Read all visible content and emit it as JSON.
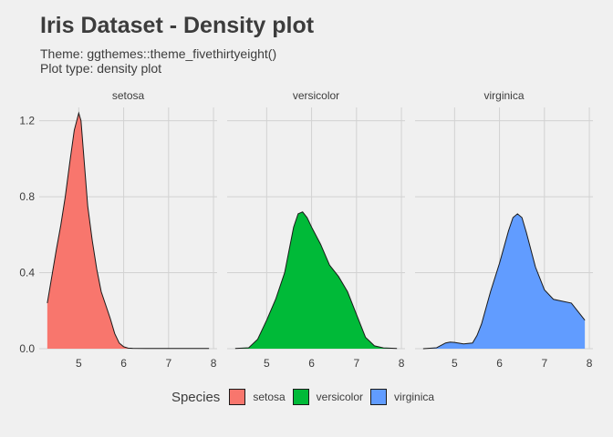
{
  "title": "Iris Dataset - Density plot",
  "subtitle_lines": [
    "Theme: ggthemes::theme_fivethirtyeight()",
    "Plot type: density plot"
  ],
  "colors": {
    "background": "#F0F0F0",
    "grid": "#D2D2D2",
    "text": "#3C3C3C",
    "outline": "#1A1A1A"
  },
  "chart_data": {
    "type": "area",
    "facet_by": "Species",
    "x": [
      4.3,
      4.5,
      4.7,
      4.85,
      5.0,
      5.1,
      5.25,
      5.4,
      5.55,
      5.7,
      5.85,
      6.0,
      6.2,
      6.5,
      6.8,
      7.1,
      7.4,
      7.65,
      7.9
    ],
    "xlim": [
      4.3,
      7.9
    ],
    "x_ticks": [
      5,
      6,
      7,
      8
    ],
    "y_ticks": [
      0.0,
      0.4,
      0.8,
      1.2
    ],
    "y_tick_labels": [
      "0.0",
      "0.4",
      "0.8",
      "1.2"
    ],
    "ylim": [
      0,
      1.27
    ],
    "grid": true,
    "legend_title": "Species",
    "legend_position": "bottom",
    "series": [
      {
        "name": "setosa",
        "color": "#F8766D",
        "x": [
          4.3,
          4.4,
          4.5,
          4.6,
          4.7,
          4.8,
          4.9,
          5.0,
          5.05,
          5.1,
          5.2,
          5.3,
          5.4,
          5.5,
          5.6,
          5.7,
          5.8,
          5.9,
          6.0,
          6.1,
          6.2,
          6.5,
          7.0,
          7.5,
          7.9
        ],
        "y": [
          0.24,
          0.38,
          0.52,
          0.65,
          0.8,
          0.98,
          1.15,
          1.24,
          1.2,
          1.05,
          0.75,
          0.57,
          0.42,
          0.3,
          0.23,
          0.16,
          0.08,
          0.03,
          0.01,
          0.003,
          0.002,
          0.001,
          0.001,
          0.001,
          0.001
        ]
      },
      {
        "name": "versicolor",
        "color": "#00BA38",
        "x": [
          4.3,
          4.6,
          4.8,
          5.0,
          5.2,
          5.4,
          5.6,
          5.7,
          5.8,
          5.9,
          6.0,
          6.2,
          6.4,
          6.6,
          6.8,
          7.0,
          7.2,
          7.4,
          7.6,
          7.9
        ],
        "y": [
          0.001,
          0.005,
          0.05,
          0.15,
          0.26,
          0.4,
          0.64,
          0.71,
          0.72,
          0.69,
          0.64,
          0.55,
          0.44,
          0.38,
          0.3,
          0.18,
          0.06,
          0.015,
          0.004,
          0.001
        ]
      },
      {
        "name": "virginica",
        "color": "#619CFF",
        "x": [
          4.3,
          4.6,
          4.8,
          4.9,
          5.0,
          5.2,
          5.4,
          5.5,
          5.6,
          5.8,
          6.0,
          6.2,
          6.3,
          6.4,
          6.5,
          6.6,
          6.8,
          7.0,
          7.2,
          7.4,
          7.6,
          7.7,
          7.8,
          7.9
        ],
        "y": [
          0.0,
          0.005,
          0.03,
          0.035,
          0.033,
          0.025,
          0.03,
          0.07,
          0.13,
          0.3,
          0.45,
          0.62,
          0.69,
          0.71,
          0.69,
          0.61,
          0.43,
          0.31,
          0.26,
          0.25,
          0.24,
          0.21,
          0.18,
          0.15
        ]
      }
    ]
  }
}
